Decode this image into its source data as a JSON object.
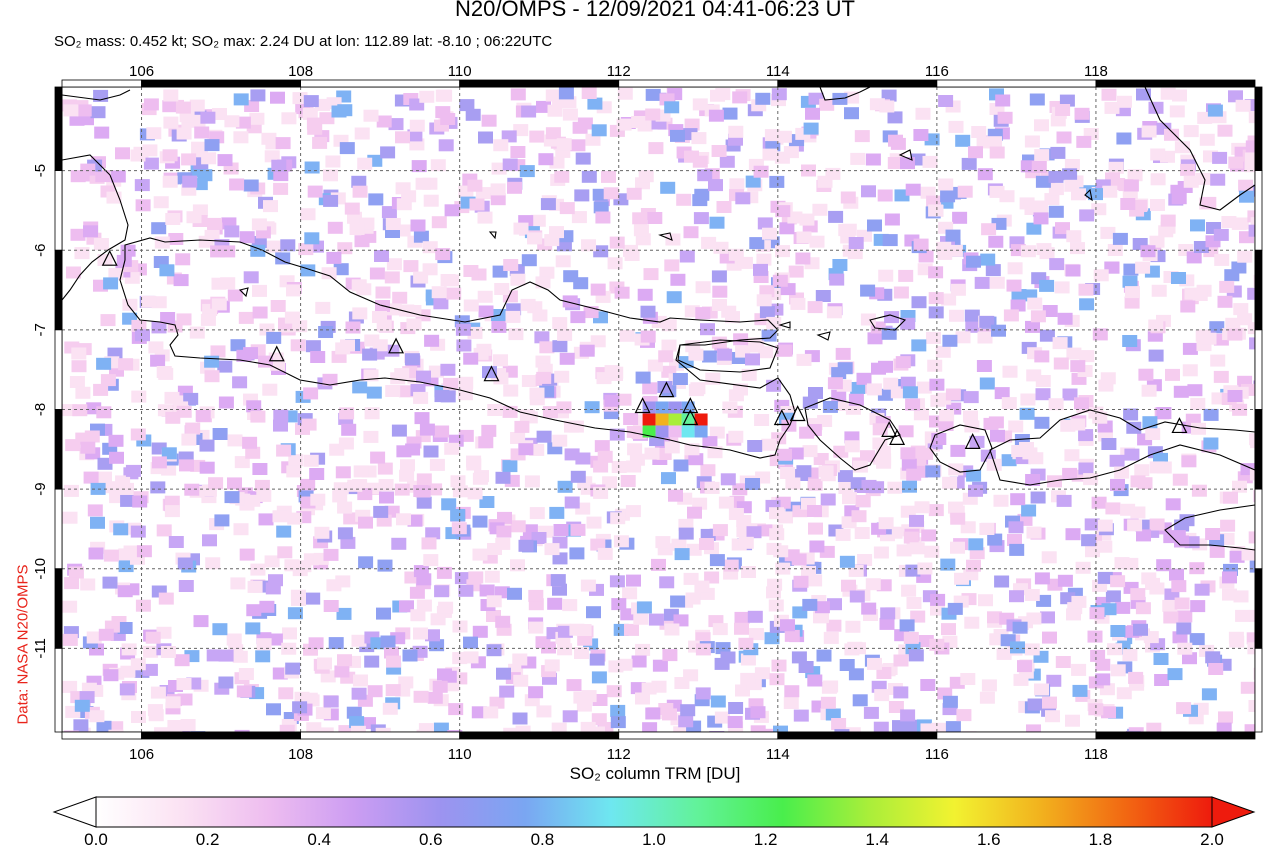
{
  "title": "N20/OMPS - 12/09/2021 04:41-06:23 UT",
  "subtitle": "SO₂ mass: 0.452 kt; SO₂ max: 2.24 DU at lon: 112.89 lat: -8.10 ; 06:22UTC",
  "credit": "Data: NASA N20/OMPS",
  "map": {
    "lon_range": [
      105,
      120
    ],
    "lat_range": [
      -12.05,
      -3.95
    ],
    "lon_ticks": [
      "106",
      "108",
      "110",
      "112",
      "114",
      "116",
      "118"
    ],
    "lat_ticks": [
      "-5",
      "-6",
      "-7",
      "-8",
      "-9",
      "-10",
      "-11"
    ],
    "grid": "dotted",
    "volcanoes": [
      [
        105.6,
        -6.1
      ],
      [
        107.7,
        -7.3
      ],
      [
        109.2,
        -7.2
      ],
      [
        110.4,
        -7.55
      ],
      [
        112.3,
        -7.95
      ],
      [
        112.6,
        -7.75
      ],
      [
        112.9,
        -7.95
      ],
      [
        112.9,
        -8.1
      ],
      [
        114.05,
        -8.1
      ],
      [
        114.25,
        -8.05
      ],
      [
        115.4,
        -8.25
      ],
      [
        115.5,
        -8.35
      ],
      [
        116.45,
        -8.4
      ],
      [
        119.05,
        -8.2
      ]
    ]
  },
  "colorbar": {
    "label": "SO₂ column TRM [DU]",
    "ticks": [
      "0.0",
      "0.2",
      "0.4",
      "0.6",
      "0.8",
      "1.0",
      "1.2",
      "1.4",
      "1.6",
      "1.8",
      "2.0"
    ],
    "colors": [
      "#ffffff",
      "#fbe2f3",
      "#eebdf0",
      "#cc9df2",
      "#9d93f0",
      "#7aa6f2",
      "#6ee7f0",
      "#62f29a",
      "#49ee4c",
      "#a9ee3a",
      "#f2f230",
      "#f2b21e",
      "#f26712",
      "#ee1b0d"
    ]
  }
}
